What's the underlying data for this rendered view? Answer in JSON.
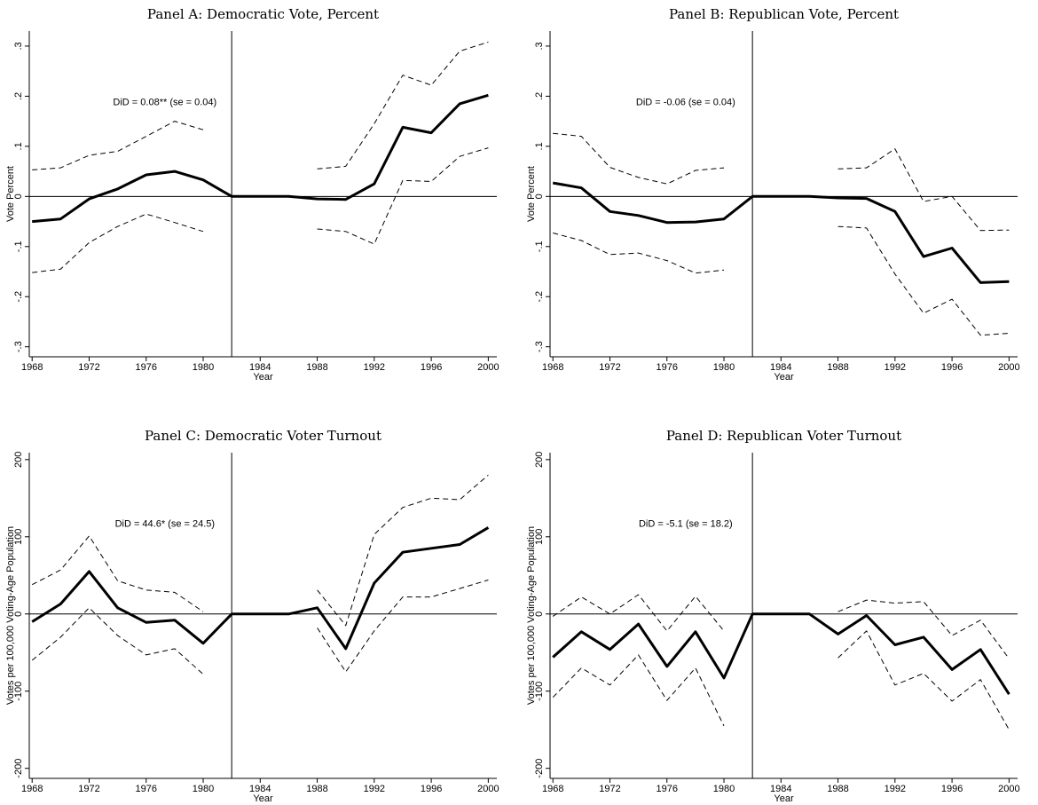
{
  "chart_data": [
    {
      "type": "line",
      "title": "Panel A: Democratic Vote, Percent",
      "x_label": "Year",
      "y_label": "Vote Percent",
      "annotation": "DiD = 0.08** (se = 0.04)",
      "x": [
        1968,
        1970,
        1972,
        1974,
        1976,
        1978,
        1980,
        1982,
        1984,
        1986,
        1988,
        1990,
        1992,
        1994,
        1996,
        1998,
        2000
      ],
      "series": [
        {
          "color": "#000000",
          "dash": false,
          "values": [
            -0.05,
            -0.045,
            -0.005,
            0.015,
            0.043,
            0.05,
            0.033,
            0,
            0,
            0,
            -0.005,
            -0.006,
            0.025,
            0.138,
            0.127,
            0.185,
            0.202
          ]
        },
        {
          "color": "#000000",
          "dash": true,
          "values": [
            0.053,
            0.057,
            0.082,
            0.09,
            0.12,
            0.15,
            0.133,
            null,
            null,
            null,
            0.055,
            0.06,
            0.145,
            0.242,
            0.222,
            0.29,
            0.308
          ]
        },
        {
          "color": "#000000",
          "dash": true,
          "values": [
            -0.152,
            -0.145,
            -0.092,
            -0.06,
            -0.035,
            -0.052,
            -0.07,
            null,
            null,
            null,
            -0.065,
            -0.07,
            -0.095,
            0.032,
            0.03,
            0.08,
            0.097
          ]
        }
      ],
      "xlim": [
        1967.8,
        2000.6
      ],
      "xticks": [
        1968,
        1972,
        1976,
        1980,
        1984,
        1988,
        1992,
        1996,
        2000
      ],
      "ylim": [
        -0.32,
        0.33
      ],
      "yticks": [
        {
          "value": -0.3,
          "label": "-.3"
        },
        {
          "value": -0.2,
          "label": "-.2"
        },
        {
          "value": -0.1,
          "label": "-.1"
        },
        0,
        {
          "value": 0.1,
          "label": ".1"
        },
        {
          "value": 0.2,
          "label": ".2"
        },
        {
          "value": 0.3,
          "label": ".3"
        }
      ],
      "vline": 1982,
      "hline": 0
    },
    {
      "type": "line",
      "title": "Panel B: Republican Vote, Percent",
      "x_label": "Year",
      "y_label": "Vote Percent",
      "annotation": "DiD = -0.06 (se = 0.04)",
      "x": [
        1968,
        1970,
        1972,
        1974,
        1976,
        1978,
        1980,
        1982,
        1984,
        1986,
        1988,
        1990,
        1992,
        1994,
        1996,
        1998,
        2000
      ],
      "series": [
        {
          "color": "#000000",
          "dash": false,
          "values": [
            0.027,
            0.017,
            -0.03,
            -0.038,
            -0.052,
            -0.051,
            -0.045,
            0,
            0,
            0,
            -0.003,
            -0.004,
            -0.03,
            -0.12,
            -0.103,
            -0.172,
            -0.17
          ]
        },
        {
          "color": "#000000",
          "dash": true,
          "values": [
            0.126,
            0.12,
            0.058,
            0.038,
            0.025,
            0.052,
            0.057,
            null,
            null,
            null,
            0.055,
            0.057,
            0.095,
            -0.01,
            0,
            -0.068,
            -0.067
          ]
        },
        {
          "color": "#000000",
          "dash": true,
          "values": [
            -0.073,
            -0.088,
            -0.116,
            -0.113,
            -0.128,
            -0.153,
            -0.147,
            null,
            null,
            null,
            -0.06,
            -0.063,
            -0.155,
            -0.233,
            -0.205,
            -0.277,
            -0.273
          ]
        }
      ],
      "xlim": [
        1967.8,
        2000.6
      ],
      "xticks": [
        1968,
        1972,
        1976,
        1980,
        1984,
        1988,
        1992,
        1996,
        2000
      ],
      "ylim": [
        -0.32,
        0.33
      ],
      "yticks": [
        {
          "value": -0.3,
          "label": "-.3"
        },
        {
          "value": -0.2,
          "label": "-.2"
        },
        {
          "value": -0.1,
          "label": "-.1"
        },
        0,
        {
          "value": 0.1,
          "label": ".1"
        },
        {
          "value": 0.2,
          "label": ".2"
        },
        {
          "value": 0.3,
          "label": ".3"
        }
      ],
      "vline": 1982,
      "hline": 0
    },
    {
      "type": "line",
      "title": "Panel C: Democratic Voter Turnout",
      "x_label": "Year",
      "y_label": "Votes per 100,000 Voting-Age Population",
      "annotation": "DiD = 44.6* (se = 24.5)",
      "x": [
        1968,
        1970,
        1972,
        1974,
        1976,
        1978,
        1980,
        1982,
        1984,
        1986,
        1988,
        1990,
        1992,
        1994,
        1996,
        1998,
        2000
      ],
      "series": [
        {
          "color": "#000000",
          "dash": false,
          "values": [
            -10,
            13,
            55,
            8,
            -11,
            -8,
            -38,
            0,
            0,
            0,
            8,
            -45,
            40,
            80,
            85,
            90,
            112
          ]
        },
        {
          "color": "#000000",
          "dash": true,
          "values": [
            38,
            57,
            101,
            43,
            31,
            28,
            3,
            null,
            null,
            null,
            31,
            -15,
            103,
            138,
            150,
            148,
            180
          ]
        },
        {
          "color": "#000000",
          "dash": true,
          "values": [
            -60,
            -30,
            8,
            -28,
            -53,
            -45,
            -78,
            null,
            null,
            null,
            -18,
            -75,
            -22,
            22,
            22,
            33,
            44
          ]
        }
      ],
      "xlim": [
        1967.8,
        2000.6
      ],
      "xticks": [
        1968,
        1972,
        1976,
        1980,
        1984,
        1988,
        1992,
        1996,
        2000
      ],
      "ylim": [
        -213,
        209
      ],
      "yticks": [
        -200,
        -100,
        0,
        100,
        200
      ],
      "vline": 1982,
      "hline": 0
    },
    {
      "type": "line",
      "title": "Panel D: Republican Voter Turnout",
      "x_label": "Year",
      "y_label": "Votes per 100,000 Voting-Age Population",
      "annotation": "DiD = -5.1 (se = 18.2)",
      "x": [
        1968,
        1970,
        1972,
        1974,
        1976,
        1978,
        1980,
        1982,
        1984,
        1986,
        1988,
        1990,
        1992,
        1994,
        1996,
        1998,
        2000
      ],
      "series": [
        {
          "color": "#000000",
          "dash": false,
          "values": [
            -56,
            -23,
            -46,
            -13,
            -68,
            -23,
            -83,
            0,
            0,
            0,
            -26,
            -2,
            -40,
            -30,
            -72,
            -46,
            -104
          ]
        },
        {
          "color": "#000000",
          "dash": true,
          "values": [
            -3,
            22,
            0,
            25,
            -22,
            23,
            -22,
            null,
            null,
            null,
            3,
            18,
            14,
            16,
            -28,
            -8,
            -58
          ]
        },
        {
          "color": "#000000",
          "dash": true,
          "values": [
            -108,
            -70,
            -92,
            -53,
            -112,
            -70,
            -145,
            null,
            null,
            null,
            -57,
            -22,
            -92,
            -77,
            -113,
            -85,
            -150
          ]
        }
      ],
      "xlim": [
        1967.8,
        2000.6
      ],
      "xticks": [
        1968,
        1972,
        1976,
        1980,
        1984,
        1988,
        1992,
        1996,
        2000
      ],
      "ylim": [
        -213,
        209
      ],
      "yticks": [
        -200,
        -100,
        0,
        100,
        200
      ],
      "vline": 1982,
      "hline": 0
    }
  ]
}
